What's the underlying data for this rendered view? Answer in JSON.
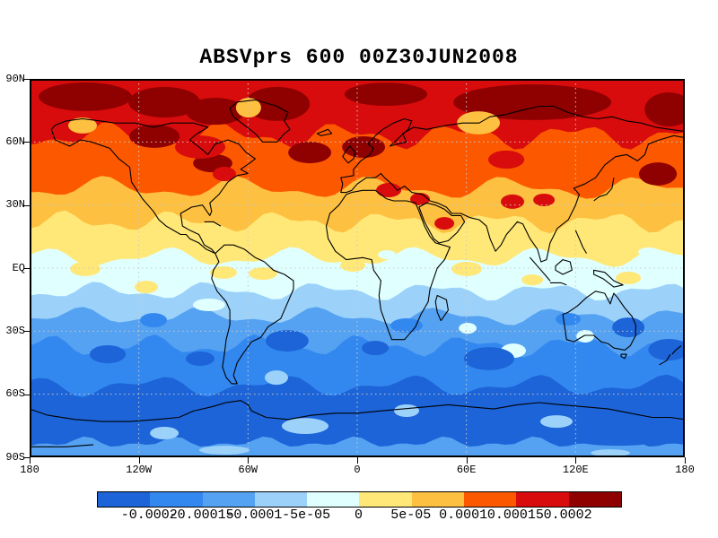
{
  "title": "ABSVprs 600 00Z30JUN2008",
  "axes": {
    "lat_labels": [
      "90N",
      "60N",
      "30N",
      "EQ",
      "30S",
      "60S",
      "90S"
    ],
    "lon_labels": [
      "180",
      "120W",
      "60W",
      "0",
      "60E",
      "120E",
      "180"
    ]
  },
  "colorbar": {
    "labels": [
      "-0.0002",
      "-0.00015",
      "-0.0001",
      "-5e-05",
      "0",
      "5e-05",
      "0.0001",
      "0.00015",
      "0.0002"
    ],
    "colors": [
      "#1c64d8",
      "#3388f0",
      "#55a2f2",
      "#9cd2fa",
      "#e0ffff",
      "#ffe878",
      "#fec040",
      "#fc5800",
      "#d80c0c",
      "#8f0000"
    ]
  },
  "chart_data": {
    "type": "heatmap",
    "title": "ABSVprs 600 00Z30JUN2008",
    "variable": "ABSVprs (absolute vorticity, 1/s)",
    "pressure_level_hPa": 600,
    "valid_time": "00Z30JUN2008",
    "projection": "equirectangular lat-lon world map with coastlines",
    "lat_range": [
      -90,
      90
    ],
    "lon_range": [
      -180,
      180
    ],
    "lat_ticks_deg": [
      90,
      60,
      30,
      0,
      -30,
      -60,
      -90
    ],
    "lon_ticks_deg": [
      -180,
      -120,
      -60,
      0,
      60,
      120,
      180
    ],
    "grid": "dotted 30-degree graticule",
    "legend_position": "horizontal colorbar below map",
    "contour_levels": [
      -0.0002,
      -0.00015,
      -0.0001,
      -5e-05,
      0,
      5e-05,
      0.0001,
      0.00015,
      0.0002
    ],
    "fill_colors": [
      "#1c64d8",
      "#3388f0",
      "#55a2f2",
      "#9cd2fa",
      "#e0ffff",
      "#ffe878",
      "#fec040",
      "#fc5800",
      "#d80c0c",
      "#8f0000"
    ],
    "zonal_mean_profile": [
      {
        "lat": 90,
        "value": 0.00018
      },
      {
        "lat": 60,
        "value": 0.00014
      },
      {
        "lat": 38,
        "value": 0.0001
      },
      {
        "lat": 22,
        "value": 5e-05
      },
      {
        "lat": 5,
        "value": 0.0
      },
      {
        "lat": -11,
        "value": -5e-05
      },
      {
        "lat": -23,
        "value": -0.0001
      },
      {
        "lat": -37,
        "value": -0.00015
      },
      {
        "lat": -56,
        "value": -0.0002
      },
      {
        "lat": -83,
        "value": -0.0001
      }
    ],
    "bands": [
      [
        90,
        8
      ],
      [
        63,
        7
      ],
      [
        38,
        6
      ],
      [
        22,
        5
      ],
      [
        5,
        4
      ],
      [
        -11,
        3
      ],
      [
        -23,
        2
      ],
      [
        -37,
        1
      ],
      [
        -56,
        0
      ],
      [
        -83,
        2
      ]
    ],
    "features": [
      [
        -149.4,
        81.5,
        25.6,
        6.8,
        9
      ],
      [
        -106,
        78.9,
        19.7,
        7.3,
        9
      ],
      [
        -111.4,
        62.7,
        13.8,
        5.5,
        9
      ],
      [
        -77.9,
        74.6,
        16.3,
        6.4,
        9
      ],
      [
        -79.4,
        49.9,
        10.8,
        4.3,
        9
      ],
      [
        -43.9,
        78.1,
        17.8,
        8.1,
        9
      ],
      [
        -26.1,
        55,
        11.8,
        5.1,
        9
      ],
      [
        15.8,
        82.7,
        22.7,
        5.5,
        9
      ],
      [
        96.2,
        78.9,
        43.4,
        8.5,
        9
      ],
      [
        171.2,
        75.5,
        13.3,
        8.1,
        9
      ],
      [
        3.5,
        57.6,
        11.8,
        5.1,
        9
      ],
      [
        165.2,
        44.8,
        10.4,
        5.5,
        9
      ],
      [
        -86.3,
        57.6,
        13.8,
        5.5,
        8
      ],
      [
        -73,
        44.8,
        6.4,
        3.4,
        8
      ],
      [
        81.9,
        51.6,
        9.9,
        4.3,
        8
      ],
      [
        85.3,
        31.6,
        6.4,
        3.4,
        8
      ],
      [
        102.6,
        32.4,
        5.9,
        3,
        8
      ],
      [
        17.3,
        37.1,
        6.9,
        3.4,
        8
      ],
      [
        34.5,
        32.8,
        5.4,
        3,
        8
      ],
      [
        47.9,
        21.3,
        5.4,
        3,
        8
      ],
      [
        -150.9,
        67.8,
        7.9,
        3.8,
        6
      ],
      [
        -59.7,
        76.3,
        6.9,
        4.7,
        6
      ],
      [
        66.6,
        69.1,
        11.8,
        5.5,
        6
      ],
      [
        -149.4,
        -0.4,
        8.4,
        3.4,
        5
      ],
      [
        -115.9,
        -9,
        6.4,
        3,
        5
      ],
      [
        -73.5,
        -2.1,
        7.4,
        3,
        5
      ],
      [
        -51.8,
        -2.6,
        7.9,
        3,
        5
      ],
      [
        -2.4,
        1.3,
        6.9,
        3,
        5
      ],
      [
        60.2,
        -0.4,
        8.4,
        3.4,
        5
      ],
      [
        96.2,
        -5.6,
        5.9,
        2.6,
        5
      ],
      [
        149,
        -4.7,
        6.9,
        3,
        5
      ],
      [
        85.8,
        -39.3,
        6.9,
        3.4,
        4
      ],
      [
        125.3,
        -32.4,
        4.9,
        3,
        4
      ],
      [
        60.7,
        -28.6,
        4.9,
        2.6,
        4
      ],
      [
        -81.4,
        -17.5,
        8.9,
        3,
        4
      ],
      [
        16.3,
        6.4,
        4.9,
        2.1,
        4
      ],
      [
        160.3,
        7.7,
        5.9,
        2.1,
        4
      ],
      [
        -111.9,
        -24.8,
        7.4,
        3.4,
        1
      ],
      [
        27.1,
        -27.3,
        8.9,
        3.4,
        1
      ],
      [
        115.9,
        -24.3,
        6.9,
        3,
        1
      ],
      [
        -137.1,
        -41,
        9.9,
        4.3,
        0
      ],
      [
        -38.5,
        -34.6,
        11.8,
        5.1,
        0
      ],
      [
        -86.3,
        -43.1,
        7.9,
        3.4,
        0
      ],
      [
        72.5,
        -43.1,
        13.8,
        5.5,
        0
      ],
      [
        149,
        -28.2,
        8.9,
        4.7,
        0
      ],
      [
        171.2,
        -38.8,
        11.3,
        5.1,
        0
      ],
      [
        9.9,
        -38,
        7.4,
        3.4,
        0
      ],
      [
        104.6,
        -77.2,
        22.2,
        3,
        0
      ],
      [
        143.1,
        -81.9,
        22.2,
        2.6,
        0
      ],
      [
        8.4,
        -64.4,
        9.9,
        3.8,
        0
      ],
      [
        -28.6,
        -75.1,
        12.8,
        3.8,
        3
      ],
      [
        -44.4,
        -52.1,
        6.4,
        3.4,
        3
      ],
      [
        109.5,
        -73,
        8.9,
        3,
        3
      ],
      [
        27.1,
        -67.8,
        6.9,
        3,
        3
      ],
      [
        -106,
        -78.5,
        7.9,
        3,
        3
      ],
      [
        -73,
        -86.6,
        13.8,
        2.1,
        3
      ],
      [
        139.1,
        -87.9,
        10.8,
        1.7,
        3
      ]
    ]
  }
}
